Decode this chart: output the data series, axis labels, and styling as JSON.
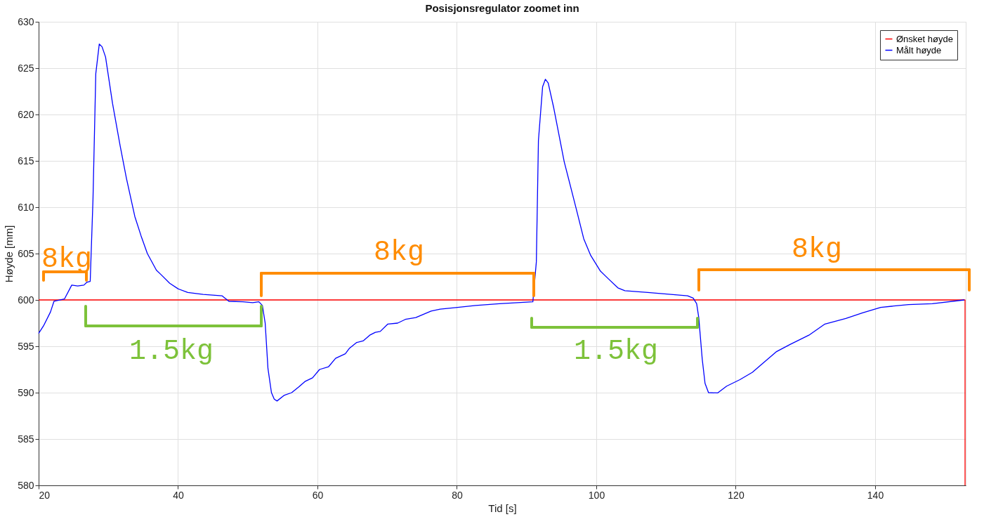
{
  "chart_data": {
    "type": "line",
    "title": "Posisjonsregulator zoomet inn",
    "xlabel": "Tid [s]",
    "ylabel": "Høyde [mm]",
    "xlim": [
      20,
      153
    ],
    "ylim": [
      580,
      630
    ],
    "xticks": [
      20,
      40,
      60,
      80,
      100,
      120,
      140
    ],
    "yticks": [
      580,
      585,
      590,
      595,
      600,
      605,
      610,
      615,
      620,
      625,
      630
    ],
    "grid": true,
    "legend": "top right",
    "line_style": "solid",
    "marker": "none",
    "series": [
      {
        "name": "Ønsket høyde",
        "color": "#ff0000",
        "x": [
          20,
          152.9,
          152.9
        ],
        "values": [
          600,
          600,
          580
        ]
      },
      {
        "name": "Målt høyde",
        "color": "#0000ff",
        "x": [
          20,
          20.7,
          21.7,
          22.2,
          23.7,
          24.75,
          25.6,
          26.5,
          26.9,
          27.4,
          27.8,
          28.2,
          28.7,
          29.1,
          29.6,
          30.6,
          31.7,
          32.6,
          33.8,
          34.7,
          35.6,
          36.9,
          37.6,
          38.8,
          40.0,
          41.4,
          43.6,
          46.3,
          47.3,
          49.3,
          50.7,
          51.6,
          52.1,
          52.5,
          52.9,
          53.4,
          53.8,
          54.2,
          55.2,
          56.3,
          57.3,
          58.2,
          59.3,
          60.3,
          61.6,
          62.6,
          64.0,
          64.6,
          65.6,
          66.6,
          67.5,
          68.3,
          69.0,
          70.1,
          71.5,
          72.6,
          74.1,
          76.3,
          77.6,
          80.1,
          82.7,
          86.1,
          90.9,
          91.4,
          91.7,
          92.3,
          92.7,
          93.1,
          93.9,
          95.4,
          97.1,
          98.2,
          99.2,
          100.6,
          101.7,
          103.1,
          104.1,
          107.4,
          110.7,
          113.1,
          113.9,
          114.4,
          114.7,
          115.2,
          115.6,
          116.1,
          117.4,
          118.7,
          120.6,
          122.4,
          123.8,
          125.8,
          127.8,
          130.5,
          132.8,
          135.8,
          138.2,
          140.8,
          144.8,
          148.2,
          152.8
        ],
        "values": [
          596.4,
          597.2,
          598.7,
          599.85,
          600.1,
          601.6,
          601.5,
          601.6,
          601.9,
          602.0,
          610.9,
          624.4,
          627.6,
          627.3,
          626.2,
          621.2,
          616.6,
          613.1,
          609.0,
          606.9,
          605.0,
          603.2,
          602.7,
          601.8,
          601.2,
          600.8,
          600.6,
          600.45,
          599.85,
          599.8,
          599.7,
          599.8,
          599.4,
          597.5,
          592.6,
          590.0,
          589.3,
          589.1,
          589.7,
          590.0,
          590.6,
          591.2,
          591.6,
          592.5,
          592.8,
          593.7,
          594.2,
          594.8,
          595.4,
          595.6,
          596.2,
          596.5,
          596.6,
          597.4,
          597.5,
          597.9,
          598.1,
          598.8,
          599.0,
          599.2,
          599.4,
          599.6,
          599.8,
          604.1,
          617.2,
          623.0,
          623.8,
          623.4,
          620.7,
          614.9,
          609.9,
          606.6,
          604.8,
          603.1,
          602.3,
          601.3,
          601.0,
          600.8,
          600.6,
          600.45,
          600.2,
          599.6,
          598.1,
          593.6,
          591.0,
          590.0,
          589.97,
          590.7,
          591.4,
          592.2,
          593.1,
          594.4,
          595.2,
          596.2,
          597.4,
          598.0,
          598.6,
          599.2,
          599.5,
          599.6,
          600.0
        ]
      }
    ],
    "annotations": [
      "8kg",
      "1.5kg",
      "8kg",
      "1.5kg",
      "8kg"
    ]
  }
}
